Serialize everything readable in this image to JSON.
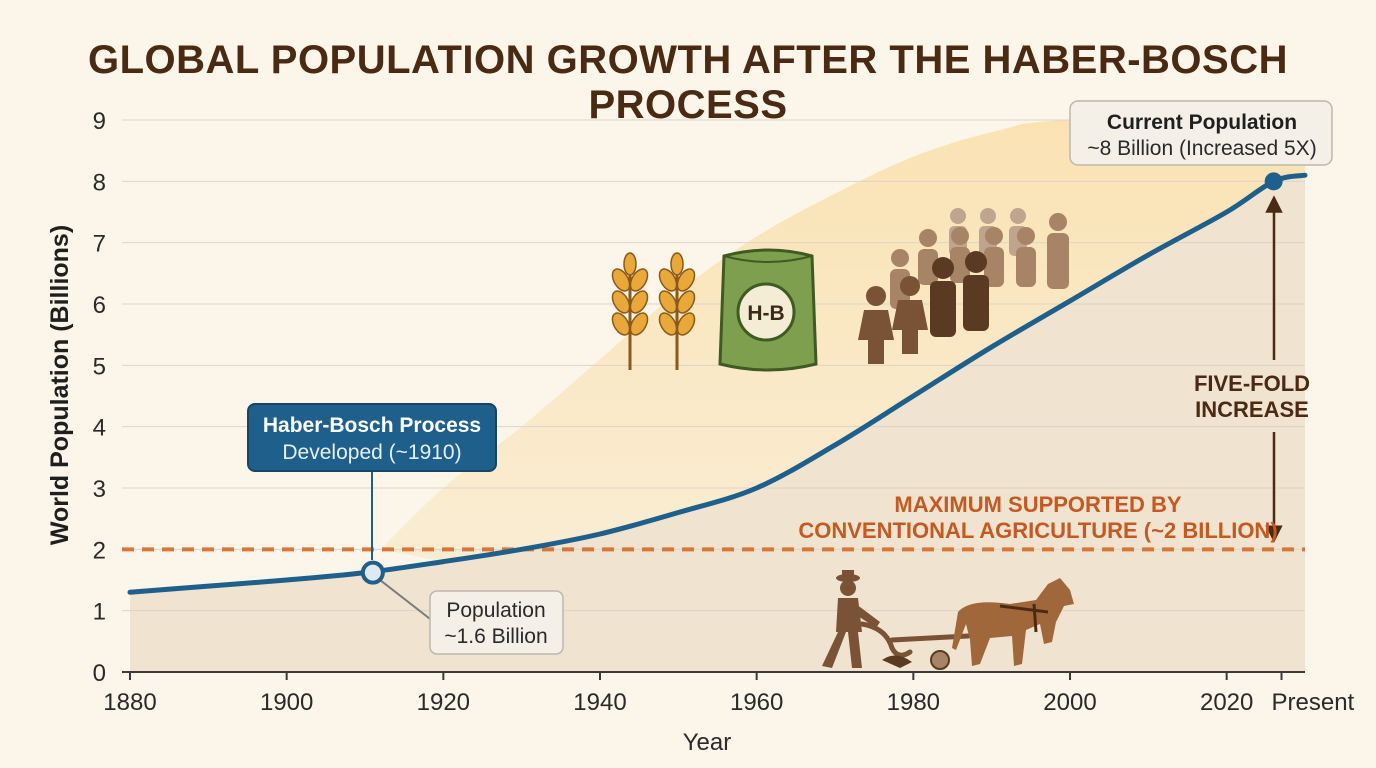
{
  "title": "GLOBAL POPULATION GROWTH AFTER THE HABER-BOSCH PROCESS",
  "colors": {
    "background": "#fbf5ea",
    "line": "#1f5f8b",
    "capacity": "#d5773a",
    "box_blue": "#1f5f8b",
    "label_brown": "#4a2a12"
  },
  "chart_data": {
    "type": "line",
    "title": "GLOBAL POPULATION GROWTH AFTER THE HABER-BOSCH PROCESS",
    "xlabel": "Year",
    "ylabel": "World Population (Billions)",
    "xlim": [
      1880,
      2030
    ],
    "ylim": [
      0,
      9
    ],
    "x_ticks": [
      {
        "value": 1880,
        "label": "1880"
      },
      {
        "value": 1900,
        "label": "1900"
      },
      {
        "value": 1920,
        "label": "1920"
      },
      {
        "value": 1940,
        "label": "1940"
      },
      {
        "value": 1960,
        "label": "1960"
      },
      {
        "value": 1980,
        "label": "1980"
      },
      {
        "value": 2000,
        "label": "2000"
      },
      {
        "value": 2020,
        "label": "2020"
      },
      {
        "value": 2027,
        "label": "Present"
      }
    ],
    "y_ticks": [
      0,
      1,
      2,
      3,
      4,
      5,
      6,
      7,
      8,
      9
    ],
    "grid": true,
    "series": [
      {
        "x": [
          1880,
          1890,
          1900,
          1910,
          1920,
          1930,
          1940,
          1950,
          1960,
          1970,
          1980,
          1990,
          2000,
          2010,
          2020,
          2026,
          2030
        ],
        "y": [
          1.3,
          1.4,
          1.5,
          1.62,
          1.8,
          2.0,
          2.25,
          2.6,
          3.0,
          3.7,
          4.5,
          5.3,
          6.05,
          6.8,
          7.5,
          8.0,
          8.1
        ]
      }
    ],
    "reference_line": {
      "y": 2,
      "label_line1": "MAXIMUM SUPPORTED BY",
      "label_line2": "CONVENTIONAL AGRICULTURE (~2 BILLION)"
    },
    "envelope": {
      "x": [
        1912,
        1920,
        1930,
        1940,
        1950,
        1960,
        1970,
        1980,
        1990,
        2000,
        2030
      ],
      "y": [
        2.0,
        3.0,
        4.0,
        5.1,
        6.2,
        7.1,
        7.8,
        8.4,
        8.8,
        9.0,
        9.0
      ]
    },
    "annotations": {
      "haber_bosch": {
        "x": 1911,
        "y": 1.62,
        "title": "Haber-Bosch Process",
        "subtitle": "Developed (~1910)",
        "pop_line1": "Population",
        "pop_line2": "~1.6 Billion"
      },
      "current": {
        "x": 2026,
        "y": 8.0,
        "title": "Current Population",
        "subtitle": "~8 Billion (Increased 5X)"
      },
      "increase_line1": "FIVE-FOLD",
      "increase_line2": "INCREASE"
    },
    "icons": {
      "bag_text": "H-B",
      "wheat": "wheat-icon",
      "bag": "fertilizer-bag-icon",
      "people": "people-crowd-icon",
      "farmer": "farmer-plow-icon"
    }
  }
}
